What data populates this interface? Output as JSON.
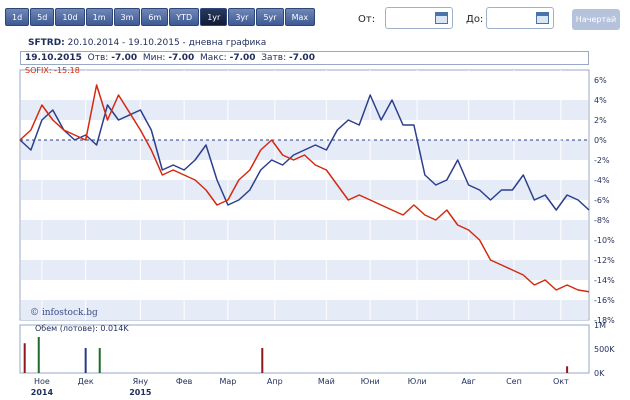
{
  "toolbar": {
    "ranges": [
      "1d",
      "5d",
      "10d",
      "1m",
      "3m",
      "6m",
      "YTD",
      "1yr",
      "3yr",
      "5yr",
      "Max"
    ],
    "active_index": 7
  },
  "date_form": {
    "from_label": "От:",
    "to_label": "До:",
    "from_value": "",
    "to_value": "",
    "draw_label": "Начертай"
  },
  "header": {
    "symbol": "SFTRD:",
    "period": "20.10.2014 - 19.10.2015 - дневна графика",
    "date": "19.10.2015",
    "open_label": "Отв:",
    "open": "-7.00",
    "low_label": "Мин:",
    "low": "-7.00",
    "high_label": "Макс:",
    "high": "-7.00",
    "close_label": "Затв:",
    "close": "-7.00"
  },
  "watermark": "© infostock.bg",
  "colors": {
    "primary": "#2b3f8c",
    "compare": "#d42a10",
    "band": "#e6ebf8",
    "grid": "#ffffff"
  },
  "chart_data": {
    "type": "line",
    "y_unit": "%",
    "ylim": [
      -18,
      7
    ],
    "y_ticks": [
      "6%",
      "4%",
      "2%",
      "0%",
      "-2%",
      "-4%",
      "-6%",
      "-8%",
      "-10%",
      "-12%",
      "-14%",
      "-16%",
      "-18%"
    ],
    "x_ticks": [
      {
        "label": "Ное",
        "year": "2014",
        "date": "2014-11-03"
      },
      {
        "label": "Дек",
        "year": "",
        "date": "2014-12-01"
      },
      {
        "label": "Яну",
        "year": "2015",
        "date": "2015-01-05"
      },
      {
        "label": "Фев",
        "year": "",
        "date": "2015-02-02"
      },
      {
        "label": "Мар",
        "year": "",
        "date": "2015-03-02"
      },
      {
        "label": "Апр",
        "year": "",
        "date": "2015-04-01"
      },
      {
        "label": "Май",
        "year": "",
        "date": "2015-05-04"
      },
      {
        "label": "Юни",
        "year": "",
        "date": "2015-06-01"
      },
      {
        "label": "Юли",
        "year": "",
        "date": "2015-07-01"
      },
      {
        "label": "Авг",
        "year": "",
        "date": "2015-08-03"
      },
      {
        "label": "Сеп",
        "year": "",
        "date": "2015-09-01"
      },
      {
        "label": "Окт",
        "year": "",
        "date": "2015-10-01"
      }
    ],
    "x_range": [
      "2014-10-20",
      "2015-10-19"
    ],
    "series": [
      {
        "name": "",
        "color": "#2b3f8c",
        "x": [
          "2014-10-20",
          "2014-10-27",
          "2014-11-03",
          "2014-11-10",
          "2014-11-17",
          "2014-11-24",
          "2014-12-01",
          "2014-12-08",
          "2014-12-15",
          "2014-12-22",
          "2015-01-05",
          "2015-01-12",
          "2015-01-19",
          "2015-01-26",
          "2015-02-02",
          "2015-02-09",
          "2015-02-16",
          "2015-02-23",
          "2015-03-02",
          "2015-03-09",
          "2015-03-16",
          "2015-03-23",
          "2015-03-30",
          "2015-04-06",
          "2015-04-13",
          "2015-04-20",
          "2015-04-27",
          "2015-05-04",
          "2015-05-11",
          "2015-05-18",
          "2015-05-25",
          "2015-06-01",
          "2015-06-08",
          "2015-06-15",
          "2015-06-22",
          "2015-06-29",
          "2015-07-06",
          "2015-07-13",
          "2015-07-20",
          "2015-07-27",
          "2015-08-03",
          "2015-08-10",
          "2015-08-17",
          "2015-08-24",
          "2015-08-31",
          "2015-09-07",
          "2015-09-14",
          "2015-09-21",
          "2015-09-28",
          "2015-10-05",
          "2015-10-12",
          "2015-10-19"
        ],
        "y": [
          0,
          -1,
          2,
          3,
          1,
          0,
          0.5,
          -0.5,
          3.5,
          2,
          3,
          1,
          -3,
          -2.5,
          -3,
          -2,
          -0.5,
          -4,
          -6.5,
          -6,
          -5,
          -3,
          -2,
          -2.5,
          -1.5,
          -1,
          -0.5,
          -1,
          1,
          2,
          1.5,
          4.5,
          2,
          4,
          1.5,
          1.5,
          -3.5,
          -4.5,
          -4,
          -2,
          -4.5,
          -5,
          -6,
          -5,
          -5,
          -3.5,
          -6,
          -5.5,
          -7,
          -5.5,
          -6,
          -7
        ]
      },
      {
        "name": "SOFIX: -15.18",
        "color": "#d42a10",
        "x": [
          "2014-10-20",
          "2014-10-27",
          "2014-11-03",
          "2014-11-10",
          "2014-11-17",
          "2014-11-24",
          "2014-12-01",
          "2014-12-08",
          "2014-12-15",
          "2014-12-22",
          "2015-01-05",
          "2015-01-12",
          "2015-01-19",
          "2015-01-26",
          "2015-02-02",
          "2015-02-09",
          "2015-02-16",
          "2015-02-23",
          "2015-03-02",
          "2015-03-09",
          "2015-03-16",
          "2015-03-23",
          "2015-03-30",
          "2015-04-06",
          "2015-04-13",
          "2015-04-20",
          "2015-04-27",
          "2015-05-04",
          "2015-05-11",
          "2015-05-18",
          "2015-05-25",
          "2015-06-01",
          "2015-06-08",
          "2015-06-15",
          "2015-06-22",
          "2015-06-29",
          "2015-07-06",
          "2015-07-13",
          "2015-07-20",
          "2015-07-27",
          "2015-08-03",
          "2015-08-10",
          "2015-08-17",
          "2015-08-24",
          "2015-08-31",
          "2015-09-07",
          "2015-09-14",
          "2015-09-21",
          "2015-09-28",
          "2015-10-05",
          "2015-10-12",
          "2015-10-19"
        ],
        "y": [
          0,
          1,
          3.5,
          2,
          1,
          0.5,
          0,
          5.5,
          2,
          4.5,
          1,
          -1,
          -3.5,
          -3,
          -3.5,
          -4,
          -5,
          -6.5,
          -6,
          -4,
          -3,
          -1,
          0,
          -1.5,
          -2,
          -1.5,
          -2.5,
          -3,
          -4.5,
          -6,
          -5.5,
          -6,
          -6.5,
          -7,
          -7.5,
          -6.5,
          -7.5,
          -8,
          -7,
          -8.5,
          -9,
          -10,
          -12,
          -12.5,
          -13,
          -13.5,
          -14.5,
          -14,
          -15,
          -14.5,
          -15,
          -15.18
        ]
      }
    ],
    "volume": {
      "label": "Обем (лотове): 0.014K",
      "ticks": [
        "1M",
        "500K",
        "0K"
      ],
      "ylim": [
        0,
        1000000
      ],
      "bars": [
        {
          "date": "2014-10-23",
          "value": 620000,
          "color": "#8b1a1a"
        },
        {
          "date": "2014-11-01",
          "value": 750000,
          "color": "#1d6b2a"
        },
        {
          "date": "2014-12-01",
          "value": 520000,
          "color": "#243a8a"
        },
        {
          "date": "2014-12-10",
          "value": 520000,
          "color": "#1d6b2a"
        },
        {
          "date": "2015-03-24",
          "value": 520000,
          "color": "#8b1a1a"
        },
        {
          "date": "2015-10-05",
          "value": 140000,
          "color": "#8b1a1a"
        }
      ]
    }
  }
}
